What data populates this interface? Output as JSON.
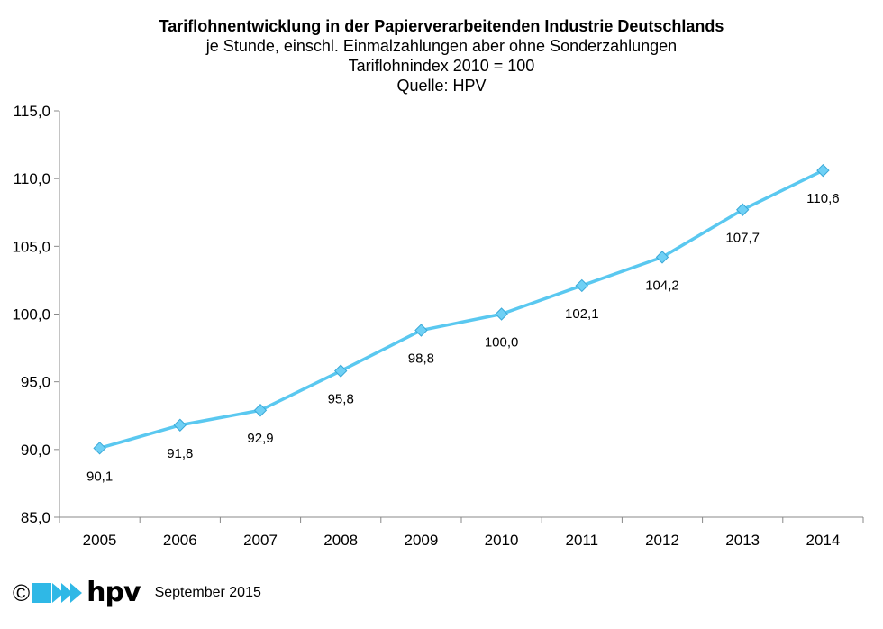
{
  "chart_data": {
    "type": "line",
    "title": "Tariflohnentwicklung  in der Papierverarbeitenden Industrie Deutschlands",
    "subtitle_lines": [
      "je Stunde, einschl. Einmalzahlungen  aber ohne Sonderzahlungen",
      "Tariflohnindex 2010 = 100",
      "Quelle: HPV"
    ],
    "categories": [
      "2005",
      "2006",
      "2007",
      "2008",
      "2009",
      "2010",
      "2011",
      "2012",
      "2013",
      "2014"
    ],
    "series": [
      {
        "values": [
          90.1,
          91.8,
          92.9,
          95.8,
          98.8,
          100.0,
          102.1,
          104.2,
          107.7,
          110.6
        ],
        "labels": [
          "90,1",
          "91,8",
          "92,9",
          "95,8",
          "98,8",
          "100,0",
          "102,1",
          "104,2",
          "107,7",
          "110,6"
        ],
        "color": "#5ac8f0",
        "marker_color": "#6fd0f5"
      }
    ],
    "ylim": [
      85,
      115
    ],
    "yticks": [
      "85,0",
      "90,0",
      "95,0",
      "100,0",
      "105,0",
      "110,0",
      "115,0"
    ],
    "xlabel": "",
    "ylabel": "",
    "grid": false,
    "legend": "none"
  },
  "footer": {
    "copyright_symbol": "©",
    "brand": "hpv",
    "brand_color": "#2fb8e6",
    "date": "September 2015"
  }
}
